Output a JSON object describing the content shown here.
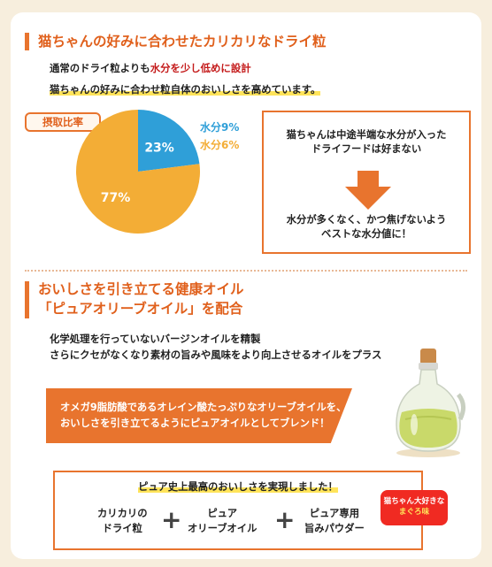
{
  "section1": {
    "title": "猫ちゃんの好みに合わせたカリカリなドライ粒",
    "line1_prefix": "通常のドライ粒よりも",
    "line1_highlight": "水分を少し低めに設計",
    "line2": "猫ちゃんの好みに合わせ粒自体のおいしさを高めています。"
  },
  "intake_badge": "摂取比率",
  "chart_data": {
    "type": "pie",
    "slices": [
      {
        "name": "水分9%",
        "value": 23,
        "label": "23%",
        "color": "#2f9fd8"
      },
      {
        "name": "水分6%",
        "value": 77,
        "label": "77%",
        "color": "#f3ad36"
      }
    ]
  },
  "legend": {
    "item1": "水分9%",
    "item1_color": "#2f9fd8",
    "item2": "水分6%",
    "item2_color": "#f3ad36"
  },
  "info_box": {
    "top_line1": "猫ちゃんは中途半端な水分が入った",
    "top_line2": "ドライフードは好まない",
    "bottom_line1": "水分が多くなく、かつ焦げないよう",
    "bottom_line2": "ベストな水分値に！"
  },
  "section2": {
    "title_line1": "おいしさを引き立てる健康オイル",
    "title_line2": "「ピュアオリーブオイル」を配合",
    "line1": "化学処理を行っていないバージンオイルを精製",
    "line2": "さらにクセがなくなり素材の旨みや風味をより向上させるオイルをプラス"
  },
  "banner": {
    "line1": "オメガ9脂肪酸であるオレイン酸たっぷりなオリーブオイルを、",
    "line2": "おいしさを引き立てるようにピュアオイルとしてブレンド！"
  },
  "bottom_box": {
    "title": "ピュア史上最高のおいしさを実現しました！",
    "item1_line1": "カリカリの",
    "item1_line2": "ドライ粒",
    "item2_line1": "ピュア",
    "item2_line2": "オリーブオイル",
    "item3_line1": "ピュア専用",
    "item3_line2": "旨みパウダー",
    "plus": "+"
  },
  "tag": {
    "line1": "猫ちゃん大好きな",
    "line2": "まぐろ味"
  },
  "colors": {
    "accent": "#e8742e",
    "title": "#e0601c",
    "red": "#c41a1a",
    "highlight": "#ffe45a"
  }
}
